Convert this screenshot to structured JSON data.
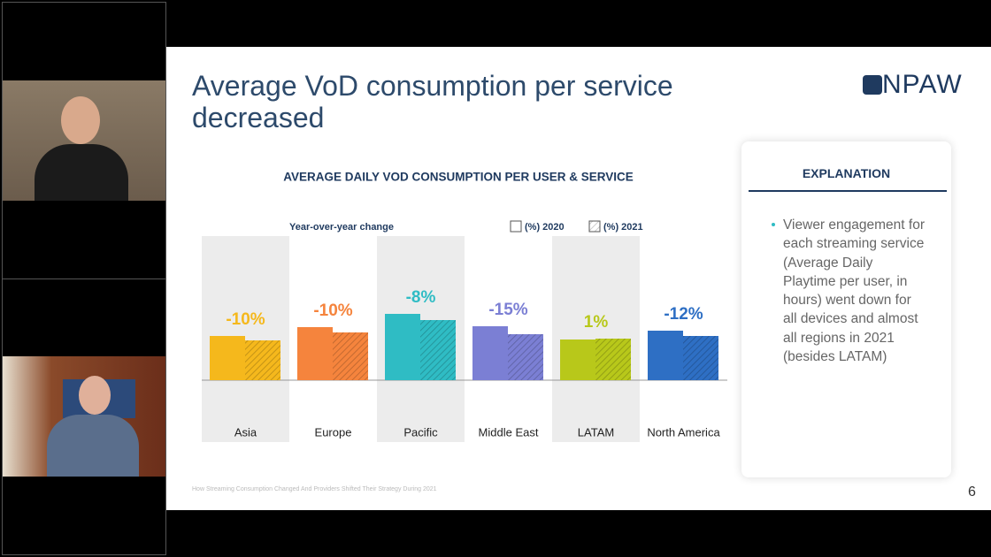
{
  "slide": {
    "title": "Average VoD consumption per service decreased",
    "logo": "NPAW",
    "footer": "How Streaming Consumption Changed And Providers Shifted Their Strategy During 2021",
    "page_number": "6",
    "explanation": {
      "heading": "EXPLANATION",
      "bullet": "Viewer engagement for each streaming service  (Average Daily Playtime per user, in hours) went down for all devices and almost all regions in 2021 (besides LATAM)"
    }
  },
  "chart_data": {
    "type": "bar",
    "title": "AVERAGE DAILY VOD CONSUMPTION PER USER & SERVICE",
    "subtitle": "Year-over-year change",
    "categories": [
      "Asia",
      "Europe",
      "Pacific",
      "Middle East",
      "LATAM",
      "North America"
    ],
    "colors": [
      "#f5b81c",
      "#f5843d",
      "#2fbcc4",
      "#7b7fd4",
      "#b8c81a",
      "#2e6fc4"
    ],
    "series": [
      {
        "name": "(%) 2020",
        "values": [
          50,
          60,
          75,
          61,
          46,
          56
        ]
      },
      {
        "name": "(%) 2021",
        "values": [
          45,
          54,
          68,
          52,
          47,
          50
        ]
      }
    ],
    "changes": [
      -10,
      -10,
      -8,
      -15,
      1,
      -12
    ],
    "change_labels": [
      "-10%",
      "-10%",
      "-8%",
      "-15%",
      "1%",
      "-12%"
    ]
  }
}
